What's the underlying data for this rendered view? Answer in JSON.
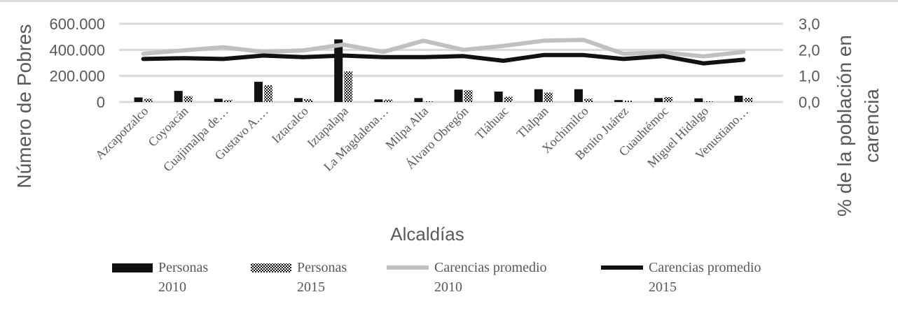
{
  "chart_data": {
    "type": "bar-line-combo",
    "xlabel": "Alcaldías",
    "ylabel_left": "Número de Pobres",
    "ylabel_right": "% de la población en carencia",
    "ylabel_right_lines": [
      "% de la población en",
      "carencia"
    ],
    "ylim_left": [
      0,
      600000
    ],
    "ylim_right": [
      0,
      3.0
    ],
    "yticks_left": [
      "0",
      "200.000",
      "400.000",
      "600.000"
    ],
    "yticks_right": [
      "0,0",
      "1,0",
      "2,0",
      "3,0"
    ],
    "categories": [
      "Azcapotzalco",
      "Coyoacán",
      "Cuajimalpa de…",
      "Gustavo A.…",
      "Iztacalco",
      "Iztapalapa",
      "La Magdalena…",
      "Milpa Alta",
      "Álvaro Obregón",
      "Tláhuac",
      "Tlalpan",
      "Xochimilco",
      "Benito Juárez",
      "Cuauhtémoc",
      "Miguel Hidalgo",
      "Venustiano…"
    ],
    "series": [
      {
        "name": "Personas 2010",
        "legend_lines": [
          "Personas",
          "2010"
        ],
        "kind": "bar",
        "axis": "left",
        "color": "#111111",
        "values": [
          35000,
          85000,
          25000,
          155000,
          30000,
          480000,
          20000,
          30000,
          95000,
          80000,
          98000,
          98000,
          15000,
          30000,
          28000,
          48000
        ]
      },
      {
        "name": "Personas 2015",
        "legend_lines": [
          "Personas",
          "2015"
        ],
        "kind": "bar-pattern",
        "axis": "left",
        "color": "#111111",
        "values": [
          25000,
          45000,
          15000,
          128000,
          22000,
          235000,
          18000,
          5000,
          90000,
          40000,
          72000,
          25000,
          10000,
          38000,
          5000,
          32000
        ]
      },
      {
        "name": "Carencias promedio 2010",
        "legend_lines": [
          "Carencias promedio",
          "2010"
        ],
        "kind": "line",
        "axis": "right",
        "color": "#c0c0c0",
        "values": [
          1.85,
          1.98,
          2.1,
          1.92,
          1.98,
          2.2,
          1.92,
          2.35,
          2.0,
          2.15,
          2.35,
          2.38,
          1.85,
          1.9,
          1.75,
          1.92
        ]
      },
      {
        "name": "Carencias promedio 2015",
        "legend_lines": [
          "Carencias promedio",
          "2015"
        ],
        "kind": "line",
        "axis": "right",
        "color": "#111111",
        "values": [
          1.65,
          1.68,
          1.65,
          1.78,
          1.72,
          1.78,
          1.72,
          1.72,
          1.76,
          1.58,
          1.8,
          1.8,
          1.65,
          1.76,
          1.48,
          1.62
        ]
      }
    ]
  }
}
